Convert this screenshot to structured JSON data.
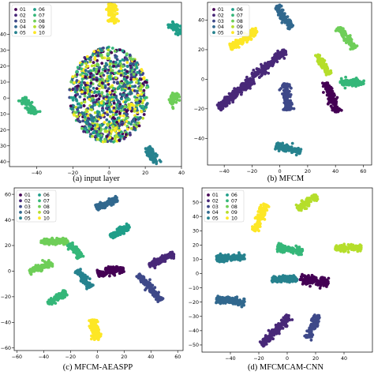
{
  "colors": {
    "01": "#440154",
    "02": "#482878",
    "03": "#3e4989",
    "04": "#31688e",
    "05": "#26828e",
    "06": "#1f9e89",
    "07": "#35b779",
    "08": "#6ece58",
    "09": "#b5de2b",
    "10": "#fde725"
  },
  "chart_data": [
    {
      "type": "scatter",
      "caption": "(a)  input layer",
      "legend": [
        "01",
        "02",
        "03",
        "04",
        "05",
        "06",
        "07",
        "08",
        "09",
        "10"
      ],
      "legend_position": "top-left",
      "xlim": [
        -55,
        40
      ],
      "ylim": [
        -43,
        60
      ],
      "xticks": [
        -40,
        -20,
        0,
        20,
        40
      ],
      "yticks": [
        -40,
        -30,
        -20,
        -10,
        0,
        10,
        20,
        30,
        40
      ],
      "mixed_cloud": {
        "center": [
          0,
          2
        ],
        "radius": [
          22,
          30
        ]
      },
      "clusters": [
        {
          "label": "10",
          "center": [
            2,
            53
          ],
          "length": 12,
          "angle": 85,
          "width": 1.4
        },
        {
          "label": "06",
          "center": [
            37,
            44
          ],
          "length": 9,
          "angle": -50,
          "width": 1.2
        },
        {
          "label": "07",
          "center": [
            -44,
            -5
          ],
          "length": 12,
          "angle": -60,
          "width": 1.2
        },
        {
          "label": "05",
          "center": [
            24,
            -36
          ],
          "length": 5,
          "angle": 40,
          "width": 2.6
        },
        {
          "label": "08",
          "center": [
            36,
            0
          ],
          "length": 6,
          "angle": 20,
          "width": 1.5
        }
      ]
    },
    {
      "type": "scatter",
      "caption": "(b) MFCM",
      "legend": [
        "01",
        "02",
        "03",
        "04",
        "05",
        "06",
        "07",
        "08",
        "09",
        "10"
      ],
      "legend_position": "top-left",
      "xlim": [
        -52,
        66
      ],
      "ylim": [
        -58,
        52
      ],
      "xticks": [
        -40,
        -20,
        0,
        20,
        40,
        60
      ],
      "yticks": [
        -40,
        -20,
        0,
        20,
        40
      ],
      "clusters": [
        {
          "label": "04",
          "center": [
            3,
            42
          ],
          "length": 18,
          "angle": -60,
          "width": 1.2
        },
        {
          "label": "10",
          "center": [
            -26,
            27
          ],
          "length": 22,
          "angle": 25,
          "width": 1.2
        },
        {
          "label": "08",
          "center": [
            48,
            28
          ],
          "length": 18,
          "angle": -55,
          "width": 1.2
        },
        {
          "label": "09",
          "center": [
            31,
            10
          ],
          "length": 16,
          "angle": -60,
          "width": 1.2
        },
        {
          "label": "02",
          "center": [
            -20,
            0
          ],
          "length": 62,
          "angle": 37,
          "width": 1.3
        },
        {
          "label": "07",
          "center": [
            52,
            -2
          ],
          "length": 17,
          "angle": -8,
          "width": 1.2
        },
        {
          "label": "01",
          "center": [
            37,
            -12
          ],
          "length": 22,
          "angle": -70,
          "width": 1.4
        },
        {
          "label": "03",
          "center": [
            5,
            -12
          ],
          "length": 18,
          "angle": -90,
          "width": 1.6
        },
        {
          "label": "05",
          "center": [
            6,
            -47
          ],
          "length": 18,
          "angle": -20,
          "width": 1.2
        }
      ]
    },
    {
      "type": "scatter",
      "caption": "(c)  MFCM-AEASPP",
      "legend": [
        "01",
        "02",
        "03",
        "04",
        "05",
        "06",
        "07",
        "08",
        "09",
        "10"
      ],
      "legend_position": "top-left",
      "xlim": [
        -62,
        64
      ],
      "ylim": [
        -62,
        65
      ],
      "xticks": [
        -60,
        -40,
        -20,
        0,
        20,
        40,
        60
      ],
      "yticks": [
        -60,
        -40,
        -20,
        0,
        20,
        40,
        60
      ],
      "clusters": [
        {
          "label": "04",
          "center": [
            7,
            53
          ],
          "length": 17,
          "angle": 18,
          "width": 1.3
        },
        {
          "label": "06",
          "center": [
            17,
            31
          ],
          "length": 16,
          "angle": 25,
          "width": 1.2
        },
        {
          "label": "08",
          "center": [
            -32,
            23
          ],
          "length": 20,
          "angle": -5,
          "width": 1.2
        },
        {
          "label": "07",
          "center": [
            -16,
            16
          ],
          "length": 14,
          "angle": -50,
          "width": 1.2
        },
        {
          "label": "08",
          "center": [
            -42,
            3
          ],
          "length": 18,
          "angle": 15,
          "width": 1.2
        },
        {
          "label": "02",
          "center": [
            48,
            9
          ],
          "length": 20,
          "angle": 20,
          "width": 1.2
        },
        {
          "label": "01",
          "center": [
            10,
            0
          ],
          "length": 20,
          "angle": 5,
          "width": 1.5
        },
        {
          "label": "03",
          "center": [
            39,
            -13
          ],
          "length": 26,
          "angle": -55,
          "width": 1.3
        },
        {
          "label": "05",
          "center": [
            -10,
            -6
          ],
          "length": 16,
          "angle": -60,
          "width": 1.2
        },
        {
          "label": "07",
          "center": [
            -30,
            -21
          ],
          "length": 16,
          "angle": 30,
          "width": 1.2
        },
        {
          "label": "10",
          "center": [
            -2,
            -46
          ],
          "length": 16,
          "angle": -90,
          "width": 1.6
        }
      ]
    },
    {
      "type": "scatter",
      "caption": "(d) MFCMCAM-CNN",
      "legend": [
        "01",
        "02",
        "03",
        "04",
        "05",
        "06",
        "07",
        "08",
        "09",
        "10"
      ],
      "legend_position": "top-left",
      "xlim": [
        -60,
        60
      ],
      "ylim": [
        -55,
        60
      ],
      "xticks": [
        -40,
        -20,
        0,
        20,
        40
      ],
      "yticks": [
        -50,
        -40,
        -30,
        -20,
        -10,
        0,
        10,
        20,
        30,
        40,
        50
      ],
      "clusters": [
        {
          "label": "09",
          "center": [
            14,
            50
          ],
          "length": 16,
          "angle": 30,
          "width": 1.2
        },
        {
          "label": "10",
          "center": [
            -19,
            39
          ],
          "length": 20,
          "angle": 60,
          "width": 1.2
        },
        {
          "label": "09",
          "center": [
            43,
            18
          ],
          "length": 18,
          "angle": -5,
          "width": 1.2
        },
        {
          "label": "07",
          "center": [
            2,
            17
          ],
          "length": 18,
          "angle": -15,
          "width": 1.2
        },
        {
          "label": "05",
          "center": [
            -40,
            11
          ],
          "length": 20,
          "angle": 0,
          "width": 1.2
        },
        {
          "label": "05",
          "center": [
            -2,
            -4
          ],
          "length": 18,
          "angle": -5,
          "width": 1.2
        },
        {
          "label": "01",
          "center": [
            19,
            -5
          ],
          "length": 20,
          "angle": -15,
          "width": 1.6
        },
        {
          "label": "04",
          "center": [
            -40,
            -19
          ],
          "length": 20,
          "angle": -10,
          "width": 1.2
        },
        {
          "label": "02",
          "center": [
            -8,
            -40
          ],
          "length": 28,
          "angle": 40,
          "width": 1.3
        },
        {
          "label": "03",
          "center": [
            18,
            -37
          ],
          "length": 18,
          "angle": 60,
          "width": 1.2
        }
      ]
    }
  ]
}
